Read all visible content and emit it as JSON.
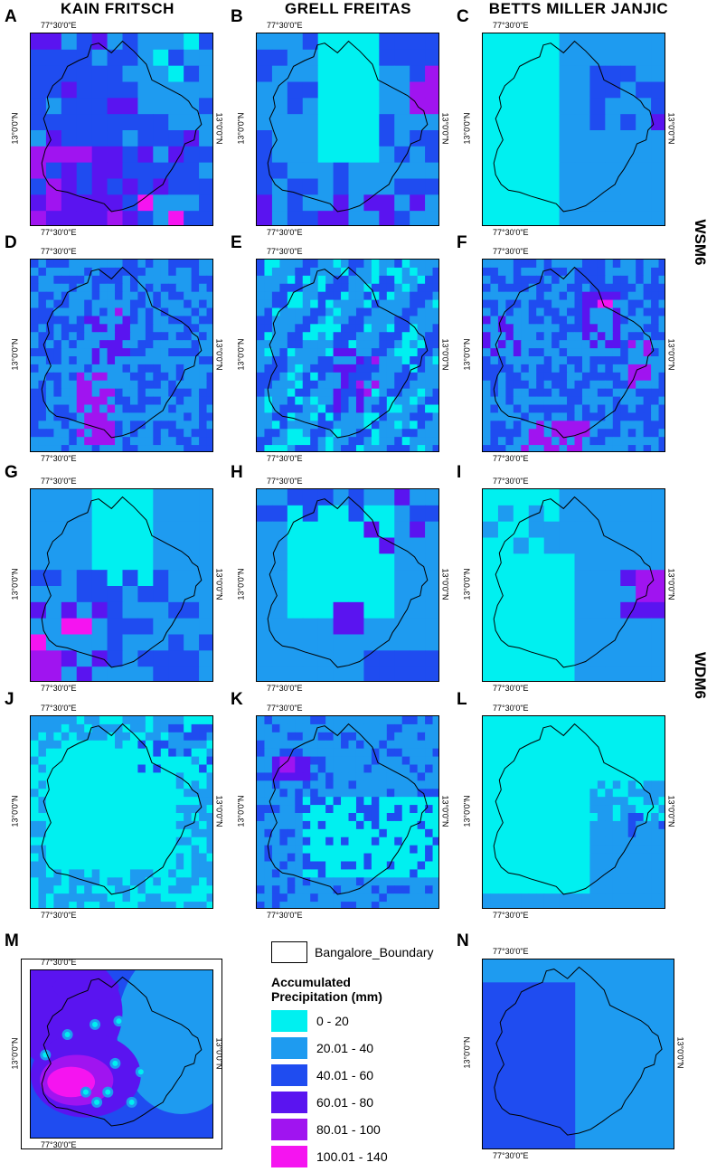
{
  "columns": [
    "KAIN FRITSCH",
    "GRELL FREITAS",
    "BETTS MILLER JANJIC"
  ],
  "row_labels": [
    "WSM6",
    "WDM6"
  ],
  "tick_lon": "77°30'0\"E",
  "tick_lat": "13°0'0\"N",
  "panels": [
    "A",
    "B",
    "C",
    "D",
    "E",
    "F",
    "G",
    "H",
    "I",
    "J",
    "K",
    "L",
    "M",
    "N"
  ],
  "legend": {
    "boundary_label": "Bangalore_Boundary",
    "title_line1": "Accumulated",
    "title_line2": "Precipitation (mm)",
    "classes": [
      {
        "label": "0 - 20",
        "color": "#00f0f0"
      },
      {
        "label": "20.01 - 40",
        "color": "#1e9bf0"
      },
      {
        "label": "40.01 - 60",
        "color": "#1f4cf0"
      },
      {
        "label": "60.01 - 80",
        "color": "#5a14f0"
      },
      {
        "label": "80.01 - 100",
        "color": "#a014f0"
      },
      {
        "label": "100.01 - 140",
        "color": "#f514f0"
      }
    ]
  }
}
